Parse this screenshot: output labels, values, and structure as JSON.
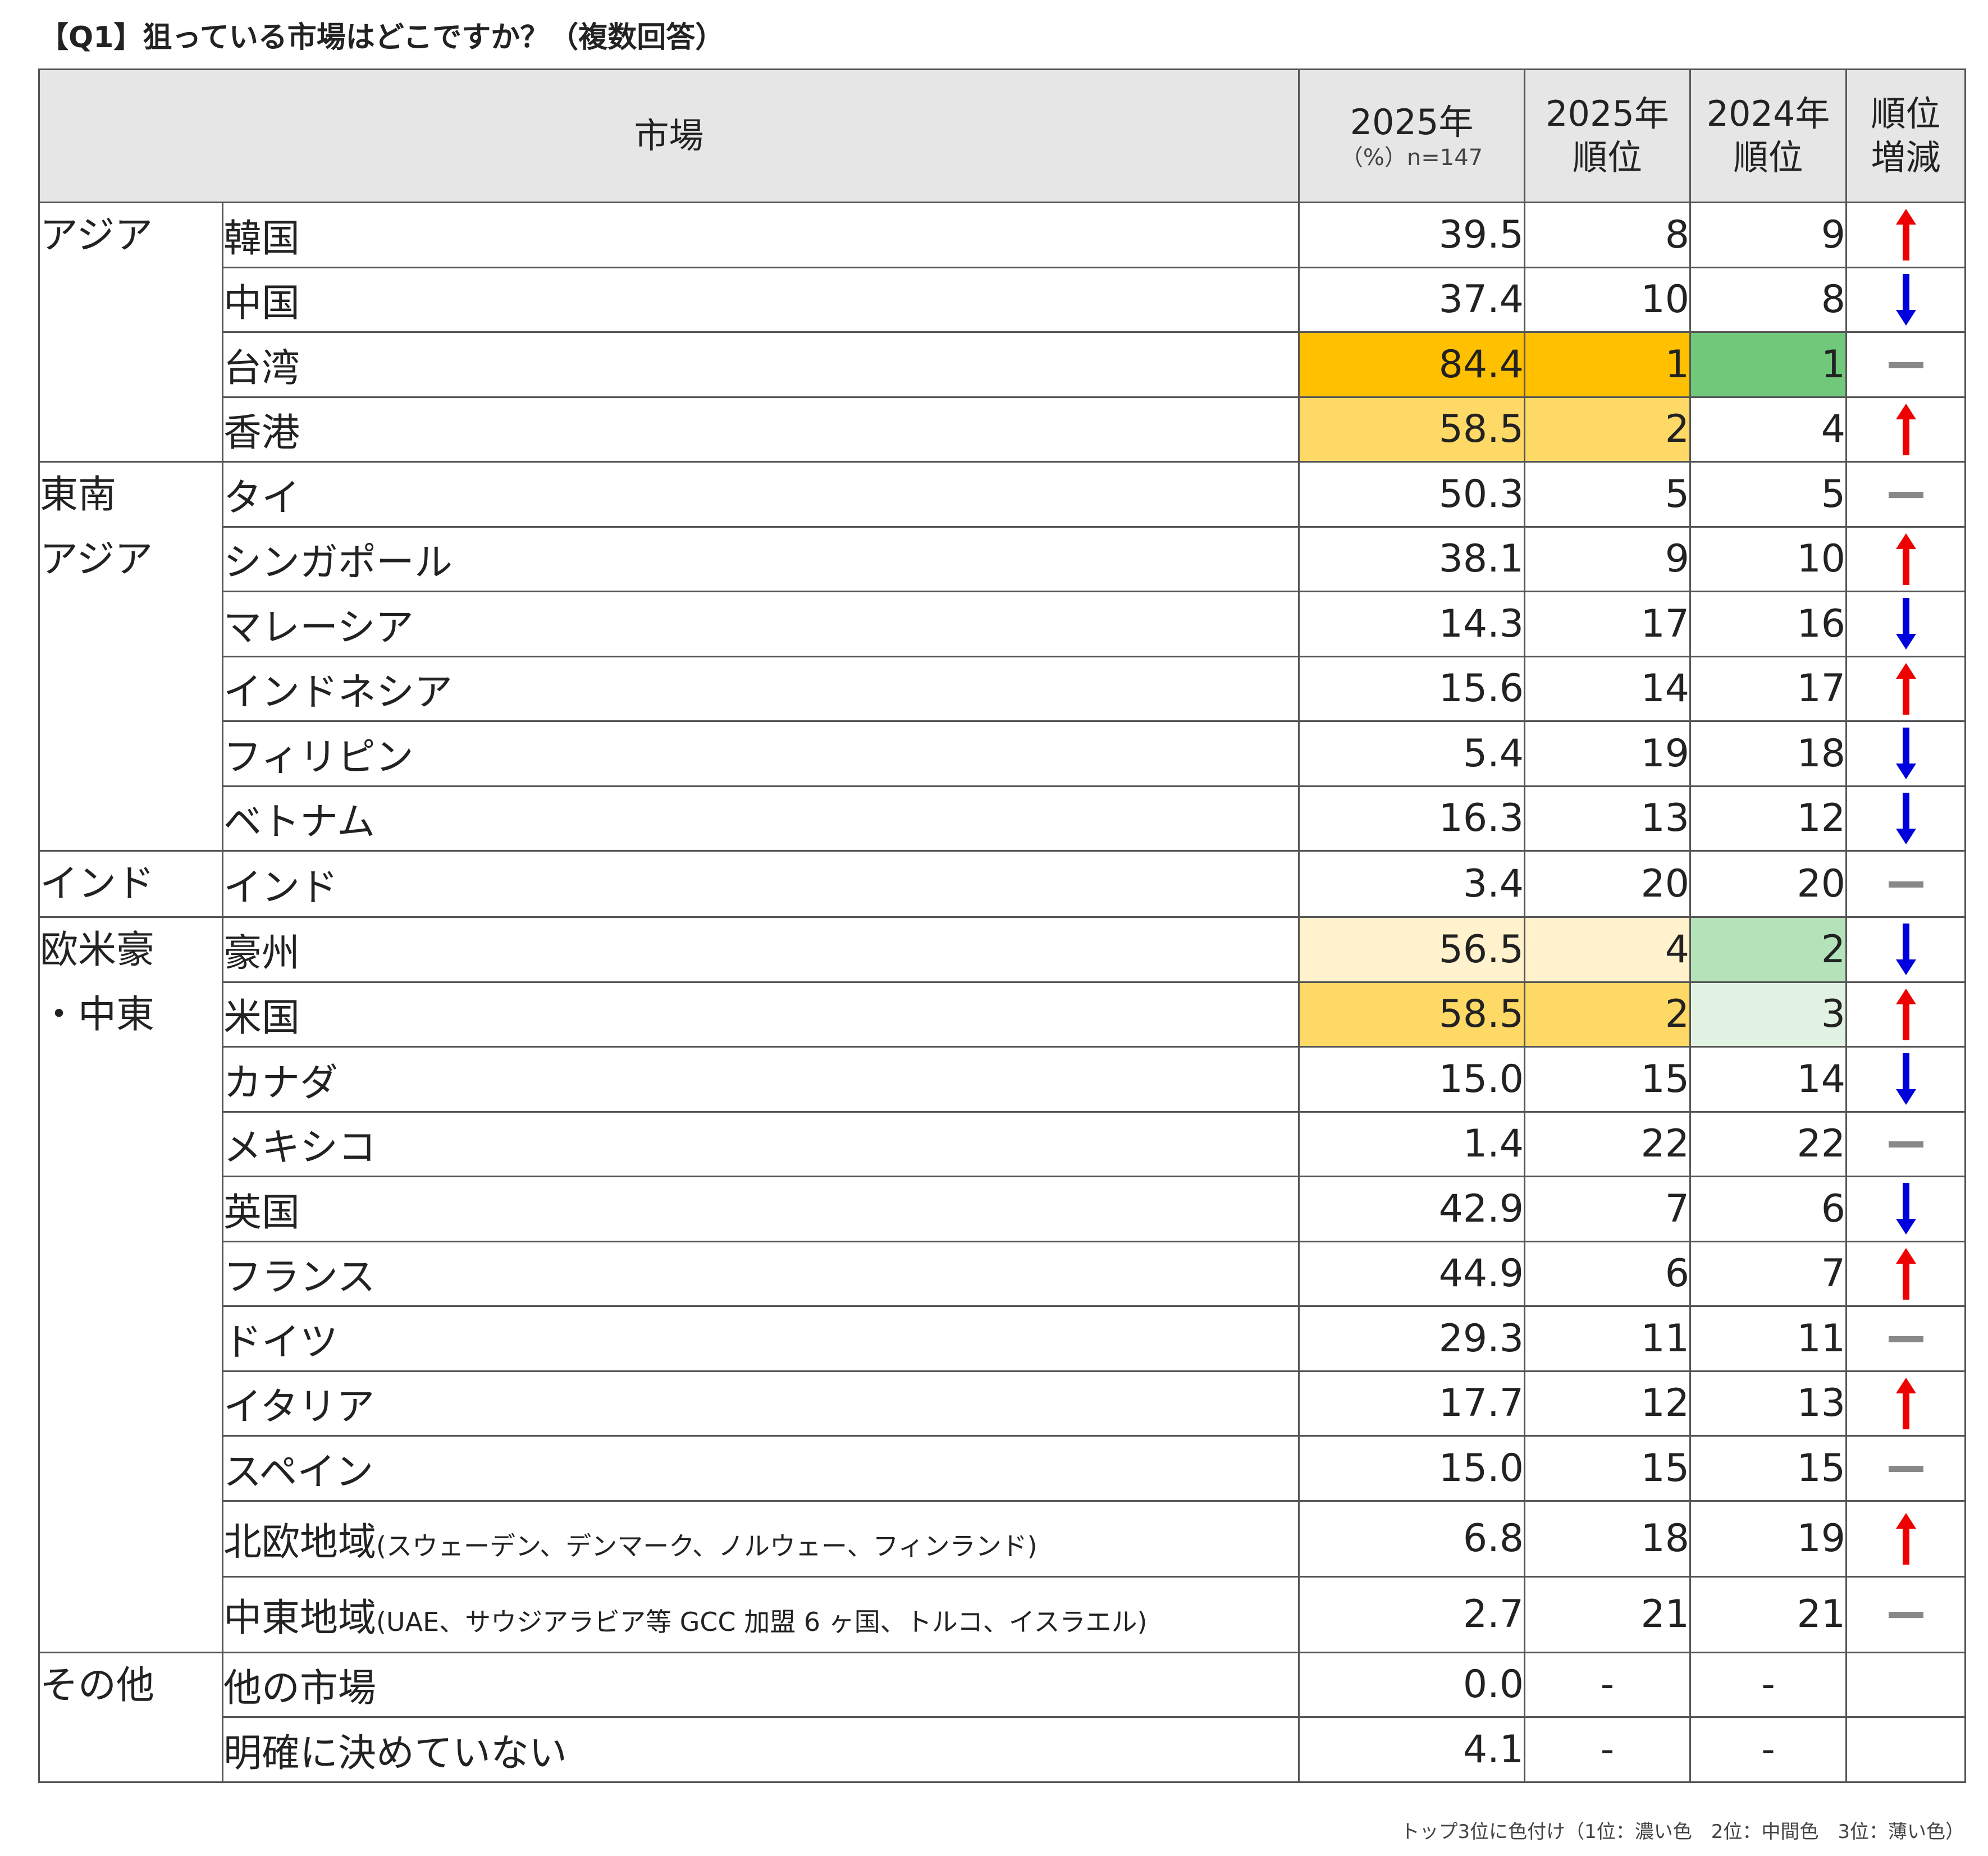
{
  "title": "【Q1】狙っている市場はどこですか？（複数回答）",
  "headers": {
    "market": "市場",
    "pct": "2025年",
    "pct_sub": "（%）n=147",
    "rank2025_l1": "2025年",
    "rank2025_l2": "順位",
    "rank2024_l1": "2024年",
    "rank2024_l2": "順位",
    "change_l1": "順位",
    "change_l2": "増減"
  },
  "footnote": "トップ3位に色付け（1位：濃い色　2位：中間色　3位：薄い色）",
  "colors": {
    "up": "#ee0000",
    "down": "#0000dd",
    "same": "#888888",
    "rank1_2025": "#ffc000",
    "rank2_2025": "#ffd966",
    "rank4_2025": "#fff2cc",
    "rank1_2024": "#70c97a",
    "rank2_2024": "#b4e2b9",
    "rank3_2024": "#e2f2e2"
  },
  "chart_data": {
    "type": "table",
    "columns": [
      "市場",
      "2025年（%）n=147",
      "2025年順位",
      "2024年順位",
      "順位増減"
    ],
    "groups": [
      {
        "region_lines": [
          "アジア"
        ],
        "rows": [
          {
            "name": "韓国",
            "note": "",
            "pct": "39.5",
            "r2025": "8",
            "r2024": "9",
            "change": "up",
            "hl2025": "",
            "hl2024": ""
          },
          {
            "name": "中国",
            "note": "",
            "pct": "37.4",
            "r2025": "10",
            "r2024": "8",
            "change": "down",
            "hl2025": "",
            "hl2024": ""
          },
          {
            "name": "台湾",
            "note": "",
            "pct": "84.4",
            "r2025": "1",
            "r2024": "1",
            "change": "same",
            "hl2025": "rank1_2025",
            "hl2024": "rank1_2024"
          },
          {
            "name": "香港",
            "note": "",
            "pct": "58.5",
            "r2025": "2",
            "r2024": "4",
            "change": "up",
            "hl2025": "rank2_2025",
            "hl2024": ""
          }
        ]
      },
      {
        "region_lines": [
          "東南",
          "アジア"
        ],
        "rows": [
          {
            "name": "タイ",
            "note": "",
            "pct": "50.3",
            "r2025": "5",
            "r2024": "5",
            "change": "same",
            "hl2025": "",
            "hl2024": ""
          },
          {
            "name": "シンガポール",
            "note": "",
            "pct": "38.1",
            "r2025": "9",
            "r2024": "10",
            "change": "up",
            "hl2025": "",
            "hl2024": ""
          },
          {
            "name": "マレーシア",
            "note": "",
            "pct": "14.3",
            "r2025": "17",
            "r2024": "16",
            "change": "down",
            "hl2025": "",
            "hl2024": ""
          },
          {
            "name": "インドネシア",
            "note": "",
            "pct": "15.6",
            "r2025": "14",
            "r2024": "17",
            "change": "up",
            "hl2025": "",
            "hl2024": ""
          },
          {
            "name": "フィリピン",
            "note": "",
            "pct": "5.4",
            "r2025": "19",
            "r2024": "18",
            "change": "down",
            "hl2025": "",
            "hl2024": ""
          },
          {
            "name": "ベトナム",
            "note": "",
            "pct": "16.3",
            "r2025": "13",
            "r2024": "12",
            "change": "down",
            "hl2025": "",
            "hl2024": ""
          }
        ]
      },
      {
        "region_lines": [
          "インド"
        ],
        "rows": [
          {
            "name": "インド",
            "note": "",
            "pct": "3.4",
            "r2025": "20",
            "r2024": "20",
            "change": "same",
            "hl2025": "",
            "hl2024": ""
          }
        ]
      },
      {
        "region_lines": [
          "欧米豪",
          "・中東"
        ],
        "rows": [
          {
            "name": "豪州",
            "note": "",
            "pct": "56.5",
            "r2025": "4",
            "r2024": "2",
            "change": "down",
            "hl2025": "rank4_2025",
            "hl2024": "rank2_2024"
          },
          {
            "name": "米国",
            "note": "",
            "pct": "58.5",
            "r2025": "2",
            "r2024": "3",
            "change": "up",
            "hl2025": "rank2_2025",
            "hl2024": "rank3_2024"
          },
          {
            "name": "カナダ",
            "note": "",
            "pct": "15.0",
            "r2025": "15",
            "r2024": "14",
            "change": "down",
            "hl2025": "",
            "hl2024": ""
          },
          {
            "name": "メキシコ",
            "note": "",
            "pct": "1.4",
            "r2025": "22",
            "r2024": "22",
            "change": "same",
            "hl2025": "",
            "hl2024": ""
          },
          {
            "name": "英国",
            "note": "",
            "pct": "42.9",
            "r2025": "7",
            "r2024": "6",
            "change": "down",
            "hl2025": "",
            "hl2024": ""
          },
          {
            "name": "フランス",
            "note": "",
            "pct": "44.9",
            "r2025": "6",
            "r2024": "7",
            "change": "up",
            "hl2025": "",
            "hl2024": ""
          },
          {
            "name": "ドイツ",
            "note": "",
            "pct": "29.3",
            "r2025": "11",
            "r2024": "11",
            "change": "same",
            "hl2025": "",
            "hl2024": ""
          },
          {
            "name": "イタリア",
            "note": "",
            "pct": "17.7",
            "r2025": "12",
            "r2024": "13",
            "change": "up",
            "hl2025": "",
            "hl2024": ""
          },
          {
            "name": "スペイン",
            "note": "",
            "pct": "15.0",
            "r2025": "15",
            "r2024": "15",
            "change": "same",
            "hl2025": "",
            "hl2024": ""
          },
          {
            "name": "北欧地域",
            "note": "(スウェーデン、デンマーク、ノルウェー、フィンランド)",
            "pct": "6.8",
            "r2025": "18",
            "r2024": "19",
            "change": "up",
            "hl2025": "",
            "hl2024": ""
          },
          {
            "name": "中東地域",
            "note": "(UAE、サウジアラビア等 GCC 加盟 6 ヶ国、トルコ、イスラエル)",
            "pct": "2.7",
            "r2025": "21",
            "r2024": "21",
            "change": "same",
            "hl2025": "",
            "hl2024": ""
          }
        ]
      },
      {
        "region_lines": [
          "その他"
        ],
        "rows": [
          {
            "name": "他の市場",
            "note": "",
            "pct": "0.0",
            "r2025": "-",
            "r2024": "-",
            "change": "",
            "hl2025": "",
            "hl2024": ""
          },
          {
            "name": "明確に決めていない",
            "note": "",
            "pct": "4.1",
            "r2025": "-",
            "r2024": "-",
            "change": "",
            "hl2025": "",
            "hl2024": ""
          }
        ]
      }
    ]
  }
}
